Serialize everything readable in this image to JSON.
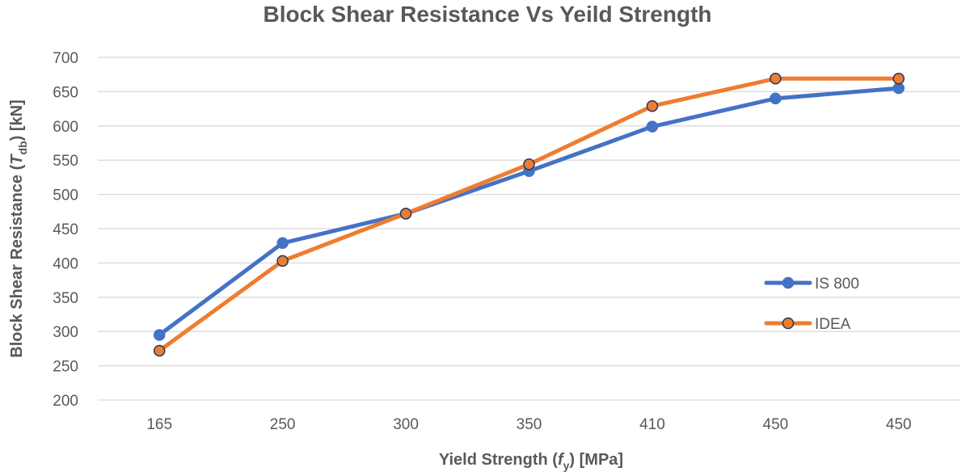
{
  "chart_data": {
    "type": "line",
    "title": "Block Shear Resistance Vs Yeild Strength",
    "xlabel": {
      "main": "Yield Strength (",
      "sym": "f",
      "sub": "y",
      "end": ") [MPa]"
    },
    "ylabel": {
      "main": "Block Shear Resistance (",
      "sym": "T",
      "sub": "db",
      "end": ") [kN]"
    },
    "categories": [
      "165",
      "250",
      "300",
      "350",
      "410",
      "450",
      "450"
    ],
    "ylim": [
      200,
      700
    ],
    "yticks": [
      200,
      250,
      300,
      350,
      400,
      450,
      500,
      550,
      600,
      650,
      700
    ],
    "grid": true,
    "legend": "right",
    "series": [
      {
        "name": "IS 800",
        "color": "#4472C4",
        "marker_edge": "#4472C4",
        "values": [
          295,
          429,
          472,
          534,
          599,
          640,
          655
        ]
      },
      {
        "name": "IDEA",
        "color": "#ED7D31",
        "marker_edge": "#203864",
        "values": [
          272,
          403,
          472,
          544,
          629,
          669,
          669
        ]
      }
    ]
  }
}
